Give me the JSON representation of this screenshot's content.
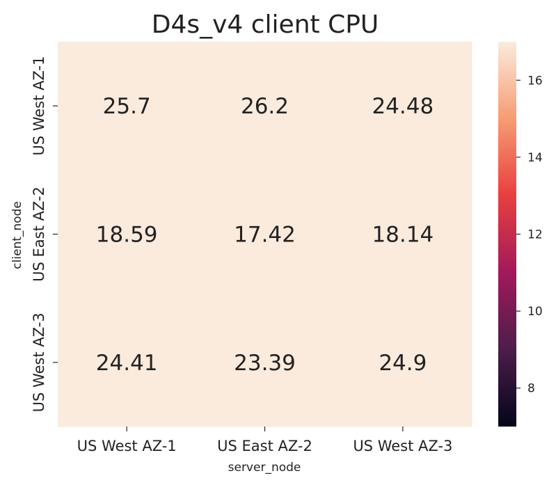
{
  "chart_data": {
    "type": "heatmap",
    "title": "D4s_v4 client CPU",
    "xlabel": "server_node",
    "ylabel": "client_node",
    "x_categories": [
      "US West AZ-1",
      "US East AZ-2",
      "US West AZ-3"
    ],
    "y_categories": [
      "US West AZ-1",
      "US East AZ-2",
      "US West AZ-3"
    ],
    "values": [
      [
        25.7,
        26.2,
        24.48
      ],
      [
        18.59,
        17.42,
        18.14
      ],
      [
        24.41,
        23.39,
        24.9
      ]
    ],
    "color_scale": {
      "vmin": 7,
      "vmax": 17,
      "ticks": [
        8,
        10,
        12,
        14,
        16
      ],
      "colormap": "rocket",
      "stops": [
        "#03051a",
        "#4c1d4b",
        "#a11a5b",
        "#e83f3f",
        "#f69c73",
        "#faebdd"
      ]
    },
    "grid": false,
    "colorbar_position": "right"
  }
}
